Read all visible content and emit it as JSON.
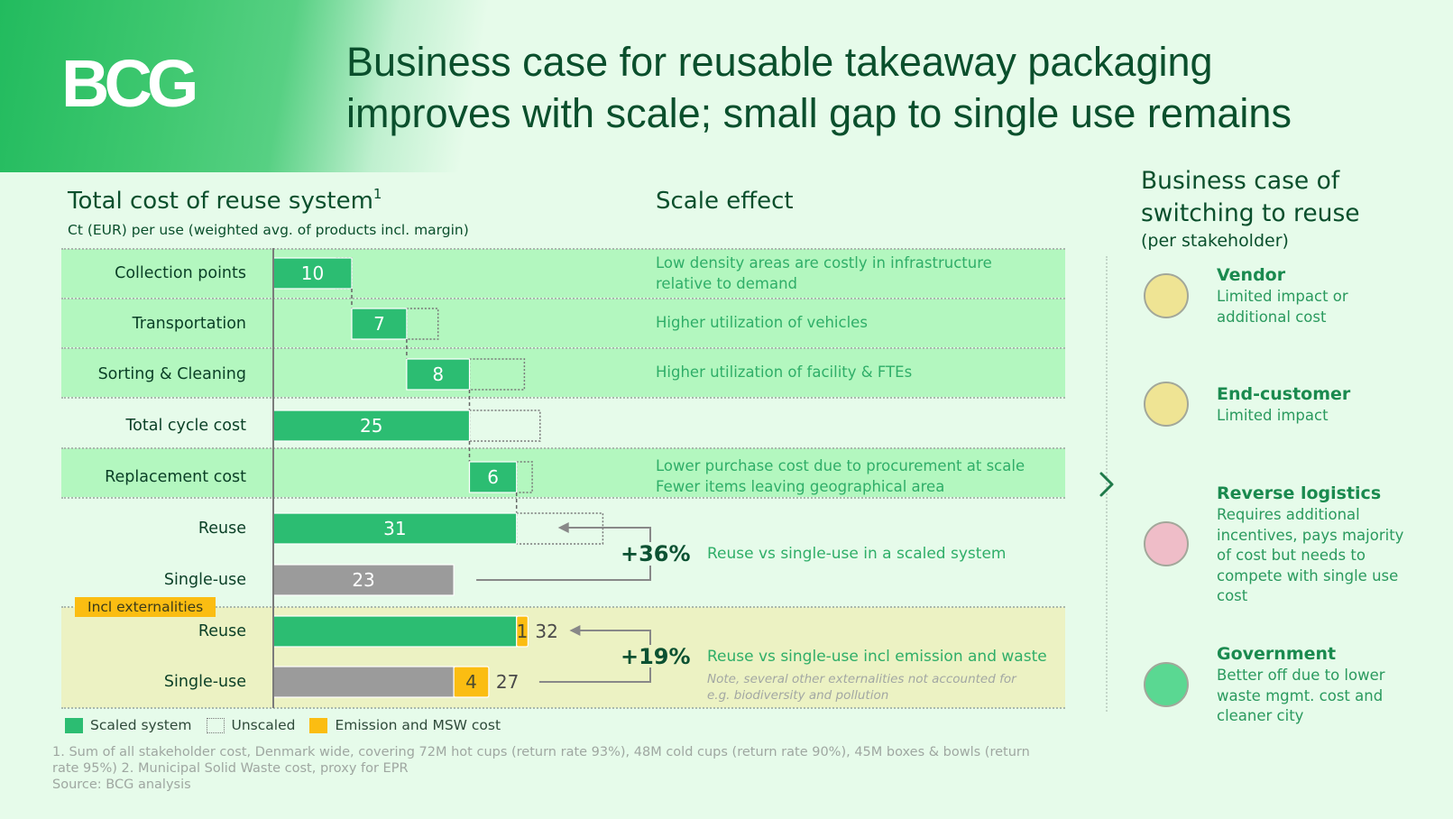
{
  "header": {
    "logo": "BCG",
    "title_line1": "Business case for reusable takeaway packaging",
    "title_line2": "improves with scale; small gap to single use remains"
  },
  "colors": {
    "scaled": "#2cbd72",
    "unscaled_outline": "#777777",
    "emission": "#fbbd12",
    "single_use": "#9b9b9b",
    "text_green": "#2fae68",
    "dark_green": "#0a4f2c"
  },
  "chart_data": {
    "type": "bar",
    "subtype": "waterfall",
    "title": "Total cost of reuse system",
    "title_footnote": "1",
    "subtitle": "Ct (EUR) per use (weighted avg. of products incl. margin)",
    "xlabel": "",
    "ylabel": "",
    "xlim": [
      0,
      35
    ],
    "grid": false,
    "categories": [
      "Collection points",
      "Transportation",
      "Sorting & Cleaning",
      "Total cycle cost",
      "Replacement cost",
      "Reuse",
      "Single-use",
      "Reuse",
      "Single-use"
    ],
    "rows": [
      {
        "label": "Collection points",
        "kind": "step",
        "start": 0,
        "value": 10,
        "unscaled_extra": -2,
        "band": "green",
        "data_label": "10"
      },
      {
        "label": "Transportation",
        "kind": "step",
        "start": 10,
        "value": 7,
        "unscaled_extra": 4,
        "band": "green",
        "data_label": "7"
      },
      {
        "label": "Sorting & Cleaning",
        "kind": "step",
        "start": 17,
        "value": 8,
        "unscaled_extra": 7,
        "band": "green",
        "data_label": "8"
      },
      {
        "label": "Total cycle cost",
        "kind": "total",
        "start": 0,
        "value": 25,
        "unscaled_extra": 9,
        "band": "none",
        "data_label": "25"
      },
      {
        "label": "Replacement cost",
        "kind": "step",
        "start": 25,
        "value": 6,
        "unscaled_extra": 2,
        "band": "green",
        "data_label": "6"
      },
      {
        "label": "Reuse",
        "kind": "total",
        "start": 0,
        "value": 31,
        "unscaled_extra": 11,
        "band": "none",
        "data_label": "31"
      },
      {
        "label": "Single-use",
        "kind": "single",
        "start": 0,
        "value": 23,
        "band": "none",
        "data_label": "23"
      },
      {
        "label": "Reuse",
        "kind": "total_ext",
        "start": 0,
        "value": 31,
        "emission": 1,
        "total": 32,
        "band": "yellow",
        "data_label": "",
        "emission_label": "1",
        "total_label": "32"
      },
      {
        "label": "Single-use",
        "kind": "single_ext",
        "start": 0,
        "value": 23,
        "emission": 4,
        "total": 27,
        "band": "yellow",
        "data_label": "",
        "emission_label": "4",
        "total_label": "27"
      }
    ],
    "series": [
      {
        "name": "Scaled system",
        "values": [
          10,
          7,
          8,
          25,
          6,
          31,
          null,
          31,
          null
        ]
      },
      {
        "name": "Single-use",
        "values": [
          null,
          null,
          null,
          null,
          null,
          null,
          23,
          null,
          23
        ]
      },
      {
        "name": "Emission and MSW cost",
        "values": [
          null,
          null,
          null,
          null,
          null,
          null,
          null,
          1,
          4
        ]
      }
    ],
    "comparisons": [
      {
        "label": "+36%",
        "description": "Reuse vs single-use in a scaled system",
        "from_row": 6,
        "to_row": 5
      },
      {
        "label": "+19%",
        "description": "Reuse vs single-use incl emission and waste",
        "from_row": 8,
        "to_row": 7,
        "note_line1": "Note, several other externalities not accounted for",
        "note_line2": "e.g. biodiversity and pollution"
      }
    ],
    "externalities_tag": "Incl externalities",
    "legend": [
      {
        "name": "Scaled system",
        "swatch": "scaled"
      },
      {
        "name": "Unscaled",
        "swatch": "unscaled"
      },
      {
        "name": "Emission and MSW cost",
        "swatch": "emission"
      }
    ],
    "legend_position": "bottom-left"
  },
  "scale_effect": {
    "title": "Scale effect",
    "items": [
      {
        "line1": "Low density areas are costly in infrastructure",
        "line2": "relative to demand"
      },
      {
        "line1": "Higher utilization of vehicles",
        "line2": ""
      },
      {
        "line1": "Higher utilization of facility & FTEs",
        "line2": ""
      },
      {
        "line1": "Lower purchase cost due to procurement at scale",
        "line2": "Fewer items leaving geographical area"
      }
    ]
  },
  "stakeholders": {
    "title_line1": "Business case of",
    "title_line2": "switching to reuse",
    "subtitle": "(per stakeholder)",
    "items": [
      {
        "name": "Vendor",
        "desc": "Limited impact or additional cost",
        "status": "neutral",
        "color": "#efe494"
      },
      {
        "name": "End-customer",
        "desc": "Limited impact",
        "status": "neutral",
        "color": "#efe494"
      },
      {
        "name": "Reverse logistics",
        "desc": "Requires additional incentives, pays majority of cost but needs to compete with single use cost",
        "status": "negative",
        "color": "#efbdc8"
      },
      {
        "name": "Government",
        "desc": "Better off due to lower waste mgmt. cost and cleaner city",
        "status": "positive",
        "color": "#5ad892"
      }
    ]
  },
  "footnotes": {
    "line1": "1. Sum of all stakeholder cost, Denmark wide, covering 72M hot cups (return rate 93%), 48M cold cups (return rate 90%), 45M boxes & bowls (return",
    "line2": "rate 95%)  2. Municipal Solid Waste cost, proxy for EPR",
    "source": "Source: BCG analysis"
  }
}
